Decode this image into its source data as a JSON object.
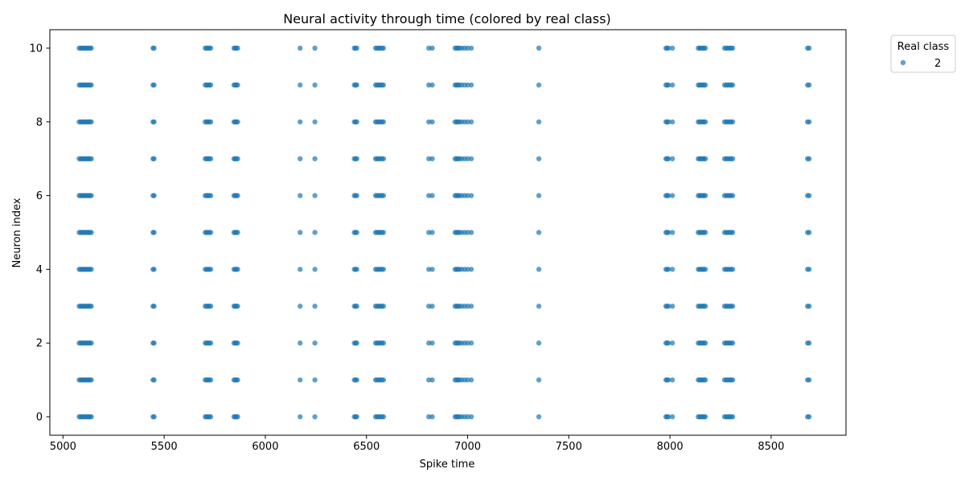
{
  "chart_data": {
    "type": "scatter",
    "title": "Neural activity through time (colored by real class)",
    "xlabel": "Spike time",
    "ylabel": "Neuron index",
    "xlim": [
      4935,
      8870
    ],
    "ylim": [
      -0.5,
      10.5
    ],
    "xticks": [
      5000,
      5500,
      6000,
      6500,
      7000,
      7500,
      8000,
      8500
    ],
    "yticks": [
      0,
      2,
      4,
      6,
      8,
      10
    ],
    "grid": false,
    "legend": {
      "title": "Real class",
      "placement": "outside-top-right"
    },
    "series": [
      {
        "name": "2",
        "color": "#1f77b4",
        "neurons": [
          0,
          1,
          2,
          3,
          4,
          5,
          6,
          7,
          8,
          9,
          10
        ],
        "spike_times": [
          5080,
          5087,
          5094,
          5100,
          5107,
          5113,
          5120,
          5127,
          5133,
          5140,
          5445,
          5450,
          5703,
          5710,
          5716,
          5723,
          5730,
          5845,
          5851,
          5857,
          5863,
          6172,
          6245,
          6440,
          6446,
          6452,
          6545,
          6552,
          6560,
          6568,
          6576,
          6584,
          6808,
          6825,
          6938,
          6945,
          6952,
          6958,
          6970,
          6985,
          7000,
          7018,
          7352,
          7980,
          7986,
          7992,
          8012,
          8140,
          8147,
          8154,
          8161,
          8168,
          8175,
          8270,
          8278,
          8286,
          8294,
          8302,
          8310,
          8680,
          8688
        ]
      }
    ]
  }
}
